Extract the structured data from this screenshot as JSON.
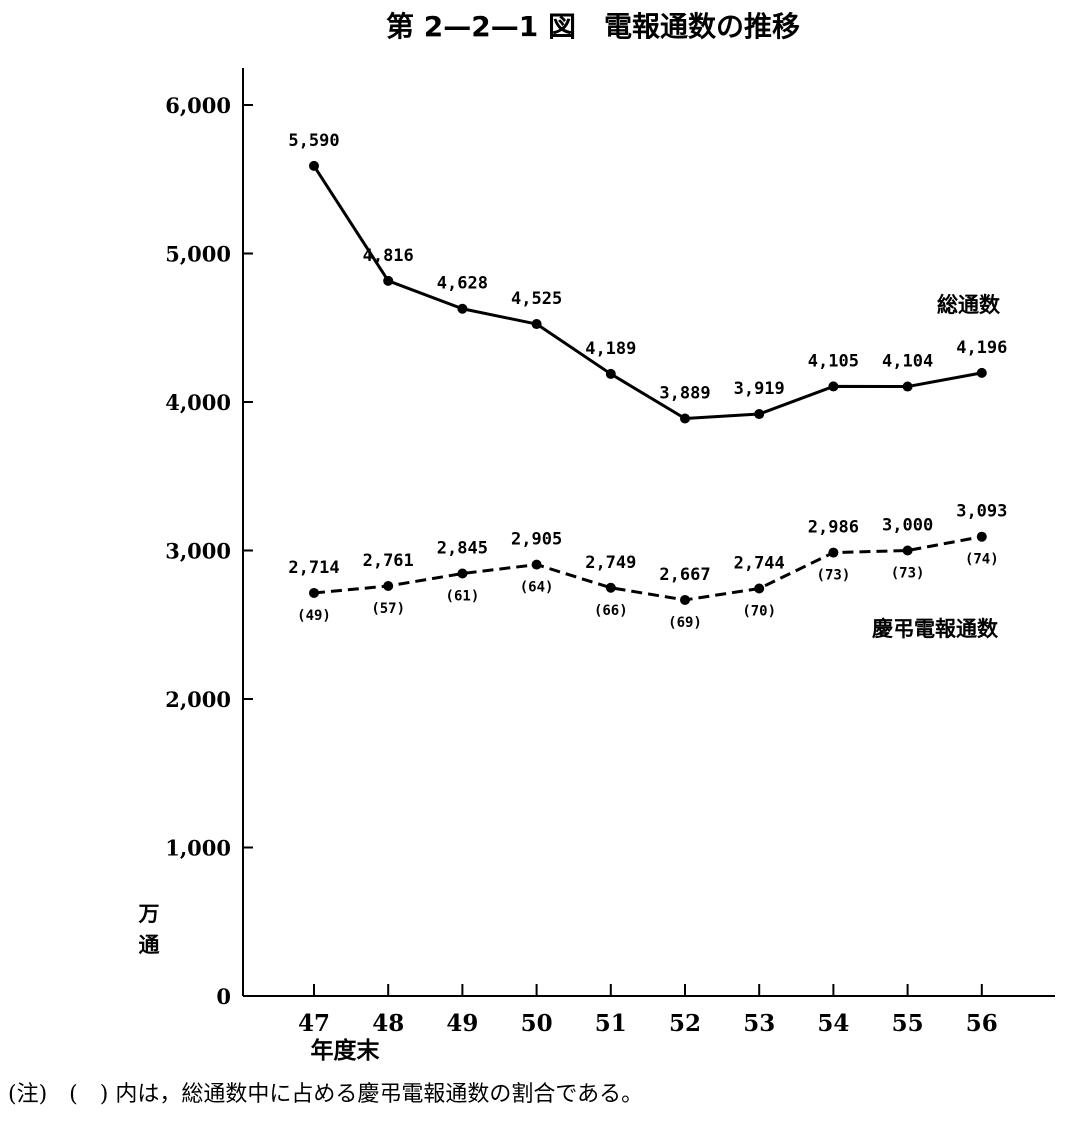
{
  "chart_data": {
    "type": "line",
    "title": "第 2—2—1 図　電報通数の推移",
    "ylabel_lines": [
      "万",
      "通"
    ],
    "xlabel_sub": "年度末",
    "ylim": [
      0,
      6000
    ],
    "yticks": [
      0,
      1000,
      2000,
      3000,
      4000,
      5000,
      6000
    ],
    "ytick_labels": [
      "0",
      "1,000",
      "2,000",
      "3,000",
      "4,000",
      "5,000",
      "6,000"
    ],
    "categories": [
      "47",
      "48",
      "49",
      "50",
      "51",
      "52",
      "53",
      "54",
      "55",
      "56"
    ],
    "series": [
      {
        "name": "総通数",
        "style": "solid",
        "values": [
          5590,
          4816,
          4628,
          4525,
          4189,
          3889,
          3919,
          4105,
          4104,
          4196
        ],
        "labels": [
          "5,590",
          "4,816",
          "4,628",
          "4,525",
          "4,189",
          "3,889",
          "3,919",
          "4,105",
          "4,104",
          "4,196"
        ]
      },
      {
        "name": "慶弔電報通数",
        "style": "dashed",
        "values": [
          2714,
          2761,
          2845,
          2905,
          2749,
          2667,
          2744,
          2986,
          3000,
          3093
        ],
        "labels": [
          "2,714",
          "2,761",
          "2,845",
          "2,905",
          "2,749",
          "2,667",
          "2,744",
          "2,986",
          "3,000",
          "3,093"
        ],
        "percent_labels": [
          "(49)",
          "(57)",
          "(61)",
          "(64)",
          "(66)",
          "(69)",
          "(70)",
          "(73)",
          "(73)",
          "(74)"
        ]
      }
    ],
    "note": "(注)　(　) 内は，総通数中に占める慶弔電報通数の割合である。",
    "grid": false,
    "colors": {
      "line": "#000000",
      "background": "#ffffff"
    }
  }
}
